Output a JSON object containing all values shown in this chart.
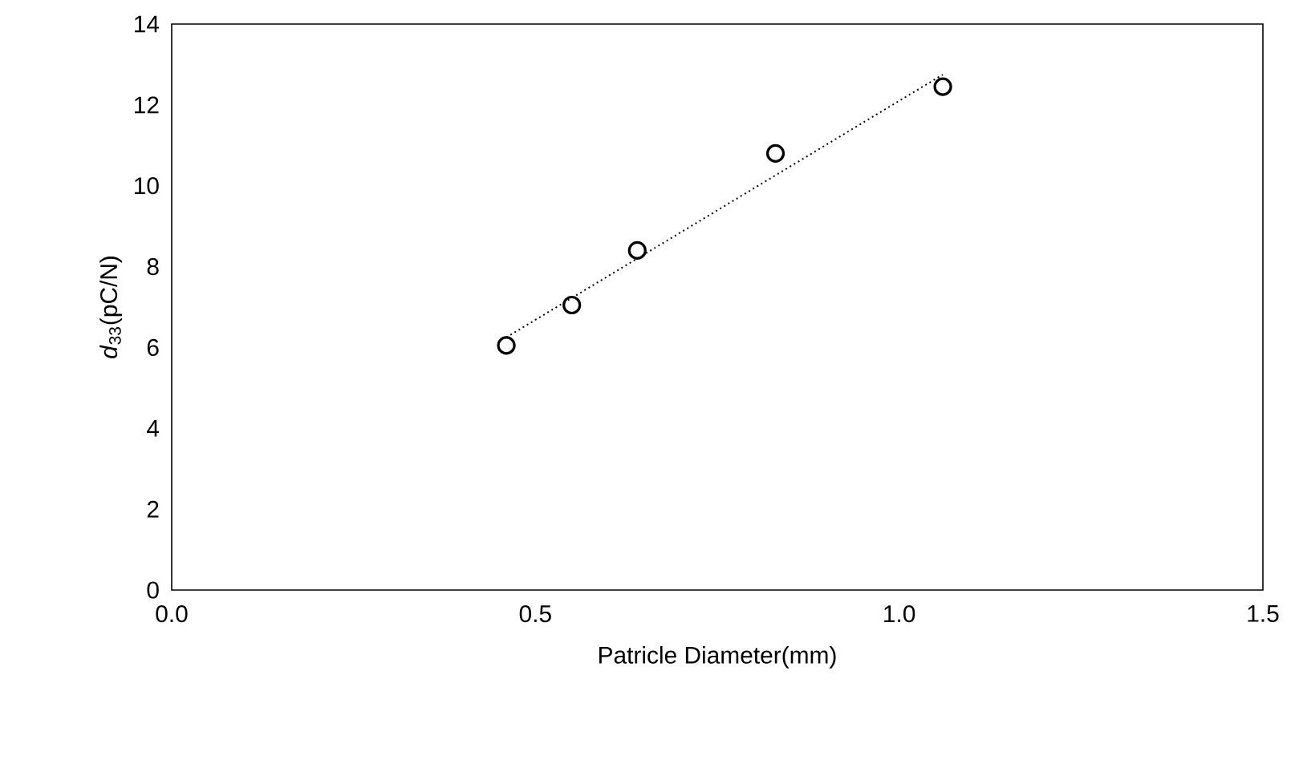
{
  "chart_data": {
    "type": "scatter",
    "xlabel": "Patricle Diameter(mm)",
    "ylabel": "*d*$_{33}$(pC/N)",
    "xlim": [
      0,
      1.5
    ],
    "ylim": [
      0,
      14
    ],
    "xticks": [
      {
        "value": 0,
        "label": "0.0"
      },
      {
        "value": 0.5,
        "label": "0.5"
      },
      {
        "value": 1,
        "label": "1.0"
      },
      {
        "value": 1.5,
        "label": "1.5"
      }
    ],
    "yticks": [
      0,
      2,
      4,
      6,
      8,
      10,
      12,
      14
    ],
    "grid": false,
    "series": [
      {
        "color": "#000000",
        "marker": "circle",
        "x": [
          0.46,
          0.55,
          0.64,
          0.83,
          1.06
        ],
        "values": [
          6.05,
          7.05,
          8.4,
          10.8,
          12.45
        ]
      },
      {
        "type": "line",
        "color": "#000000",
        "line_style": "dotted",
        "marker": "none",
        "x": [
          0.46,
          1.06
        ],
        "values": [
          6.25,
          12.75
        ]
      }
    ]
  }
}
